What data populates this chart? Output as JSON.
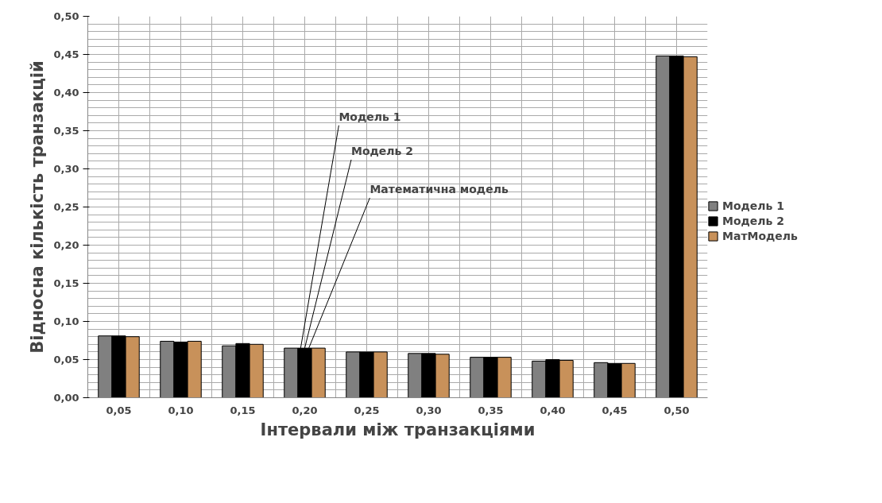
{
  "chart_data": {
    "type": "bar",
    "xlabel": "Інтервали між транзакціями",
    "ylabel": "Відносна кількість транзакцій",
    "categories": [
      "0,05",
      "0,10",
      "0,15",
      "0,20",
      "0,25",
      "0,30",
      "0,35",
      "0,40",
      "0,45",
      "0,50"
    ],
    "series": [
      {
        "name": "Модель 1",
        "color": "#808080",
        "values": [
          0.081,
          0.074,
          0.068,
          0.065,
          0.06,
          0.058,
          0.053,
          0.048,
          0.046,
          0.448
        ]
      },
      {
        "name": "Модель 2",
        "color": "#000000",
        "values": [
          0.081,
          0.073,
          0.071,
          0.065,
          0.06,
          0.058,
          0.053,
          0.05,
          0.045,
          0.448
        ]
      },
      {
        "name": "МатМодель",
        "color": "#c8915a",
        "values": [
          0.08,
          0.074,
          0.07,
          0.065,
          0.06,
          0.057,
          0.053,
          0.049,
          0.045,
          0.447
        ]
      }
    ],
    "ylim": [
      0,
      0.5
    ],
    "yticks": [
      {
        "value": 0,
        "label": "0,00"
      },
      {
        "value": 0.05,
        "label": "0,05"
      },
      {
        "value": 0.1,
        "label": "0,10"
      },
      {
        "value": 0.15,
        "label": "0,15"
      },
      {
        "value": 0.2,
        "label": "0,20"
      },
      {
        "value": 0.25,
        "label": "0,25"
      },
      {
        "value": 0.3,
        "label": "0,30"
      },
      {
        "value": 0.35,
        "label": "0,35"
      },
      {
        "value": 0.4,
        "label": "0,40"
      },
      {
        "value": 0.45,
        "label": "0,45"
      },
      {
        "value": 0.5,
        "label": "0,50"
      }
    ],
    "grid": true,
    "legend": "right",
    "annotations": [
      {
        "text": "Модель 1",
        "x": "0,20",
        "y": 0.065
      },
      {
        "text": "Модель 2",
        "x": "0,20",
        "y": 0.065
      },
      {
        "text": "Математична модель",
        "x": "0,20",
        "y": 0.065
      }
    ]
  }
}
